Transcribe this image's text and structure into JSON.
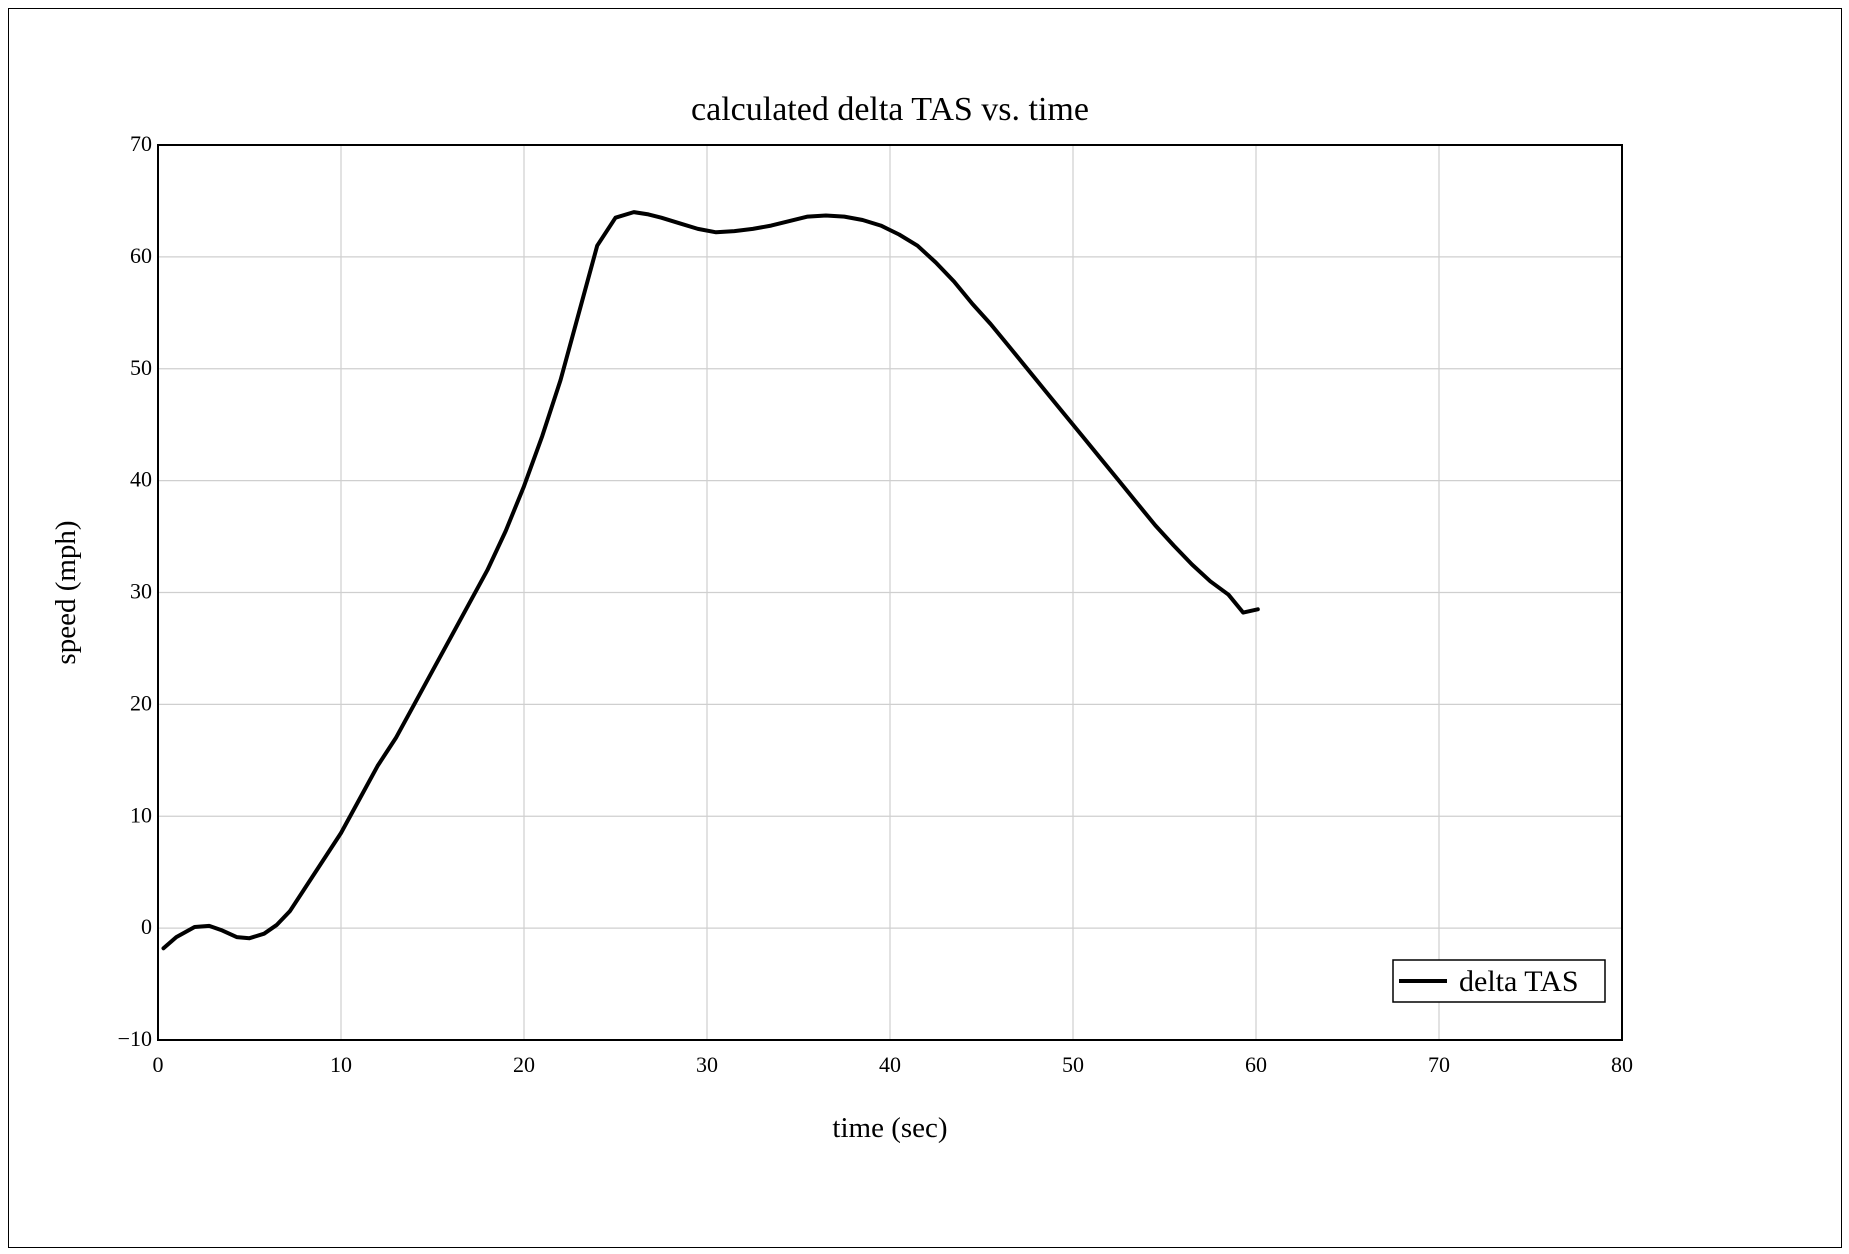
{
  "chart_data": {
    "type": "line",
    "title": "calculated delta TAS vs. time",
    "xlabel": "time (sec)",
    "ylabel": "speed (mph)",
    "xlim": [
      0,
      80
    ],
    "ylim": [
      -10,
      70
    ],
    "xticks": [
      0,
      10,
      20,
      30,
      40,
      50,
      60,
      70,
      80
    ],
    "yticks": [
      -10,
      0,
      10,
      20,
      30,
      40,
      50,
      60,
      70
    ],
    "xtick_labels": [
      "0",
      "10",
      "20",
      "30",
      "40",
      "50",
      "60",
      "70",
      "80"
    ],
    "ytick_labels": [
      "−10",
      "0",
      "10",
      "20",
      "30",
      "40",
      "50",
      "60",
      "70"
    ],
    "grid": true,
    "legend": {
      "placement": "bottom-right",
      "entries": [
        "delta TAS"
      ]
    },
    "series": [
      {
        "name": "delta TAS",
        "color": "#000000",
        "x": [
          0.3,
          1,
          2,
          2.8,
          3.5,
          4.3,
          5,
          5.8,
          6.5,
          7.2,
          8,
          9,
          10,
          11,
          12,
          13,
          14,
          15,
          16,
          17,
          18,
          19,
          20,
          21,
          22,
          23,
          24,
          25,
          26,
          26.8,
          27.5,
          28.5,
          29.5,
          30.5,
          31.5,
          32.5,
          33.5,
          34.5,
          35.5,
          36.5,
          37.5,
          38.5,
          39.5,
          40.5,
          41.5,
          42.5,
          43.5,
          44.5,
          45.5,
          46.5,
          47.5,
          48.5,
          49.5,
          50.5,
          51.5,
          52.5,
          53.5,
          54.5,
          55.5,
          56.5,
          57.5,
          58.5,
          59.3,
          60.1
        ],
        "y": [
          -1.8,
          -0.8,
          0.1,
          0.2,
          -0.2,
          -0.8,
          -0.9,
          -0.5,
          0.3,
          1.5,
          3.5,
          6,
          8.5,
          11.5,
          14.5,
          17,
          20,
          23,
          26,
          29,
          32,
          35.5,
          39.5,
          44,
          49,
          55,
          61,
          63.5,
          64,
          63.8,
          63.5,
          63,
          62.5,
          62.2,
          62.3,
          62.5,
          62.8,
          63.2,
          63.6,
          63.7,
          63.6,
          63.3,
          62.8,
          62,
          61,
          59.5,
          57.8,
          55.8,
          54,
          52,
          50,
          48,
          46,
          44,
          42,
          40,
          38,
          36,
          34.2,
          32.5,
          31,
          29.8,
          28.2,
          28.5
        ]
      }
    ]
  }
}
